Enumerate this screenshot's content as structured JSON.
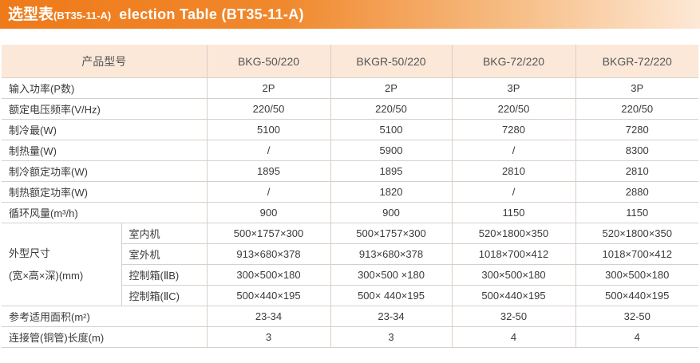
{
  "title": {
    "cn": "选型表",
    "code": "(BT35-11-A)",
    "en": "election Table (BT35-11-A)"
  },
  "header": {
    "model_label": "产品型号",
    "models": [
      "BKG-50/220",
      "BKGR-50/220",
      "BKG-72/220",
      "BKGR-72/220"
    ]
  },
  "rows": [
    {
      "label": "输入功率(P数)",
      "values": [
        "2P",
        "2P",
        "3P",
        "3P"
      ]
    },
    {
      "label": "额定电压频率(V/Hz)",
      "values": [
        "220/50",
        "220/50",
        "220/50",
        "220/50"
      ]
    },
    {
      "label": "制冷最(W)",
      "values": [
        "5100",
        "5100",
        "7280",
        "7280"
      ]
    },
    {
      "label": "制热量(W)",
      "values": [
        "/",
        "5900",
        "/",
        "8300"
      ]
    },
    {
      "label": "制冷额定功率(W)",
      "values": [
        "1895",
        "1895",
        "2810",
        "2810"
      ]
    },
    {
      "label": "制热额定功率(W)",
      "values": [
        "/",
        "1820",
        "/",
        "2880"
      ]
    },
    {
      "label": "循环风量(m³/h)",
      "values": [
        "900",
        "900",
        "1150",
        "1150"
      ]
    }
  ],
  "dimensions": {
    "label_line1": "外型尺寸",
    "label_line2": "(宽×高×深)(mm)",
    "rows": [
      {
        "label": "室内机",
        "values": [
          "500×1757×300",
          "500×1757×300",
          "520×1800×350",
          "520×1800×350"
        ]
      },
      {
        "label": "室外机",
        "values": [
          "913×680×378",
          "913×680×378",
          "1018×700×412",
          "1018×700×412"
        ]
      },
      {
        "label": "控制箱(ⅡB)",
        "values": [
          "300×500×180",
          "300×500 ×180",
          "300×500×180",
          "300×500×180"
        ]
      },
      {
        "label": "控制箱(ⅡC)",
        "values": [
          "500×440×195",
          "500× 440×195",
          "500×440×195",
          "500×440×195"
        ]
      }
    ]
  },
  "footer_rows": [
    {
      "label": "参考适用面积(m²)",
      "values": [
        "23-34",
        "23-34",
        "32-50",
        "32-50"
      ]
    },
    {
      "label": "连接管(铜管)长度(m)",
      "values": [
        "3",
        "3",
        "4",
        "4"
      ]
    }
  ],
  "colors": {
    "title_orange": "#ef7a1a",
    "header_bg": "#fbe8d9",
    "grid_line": "#d8cfc8"
  }
}
